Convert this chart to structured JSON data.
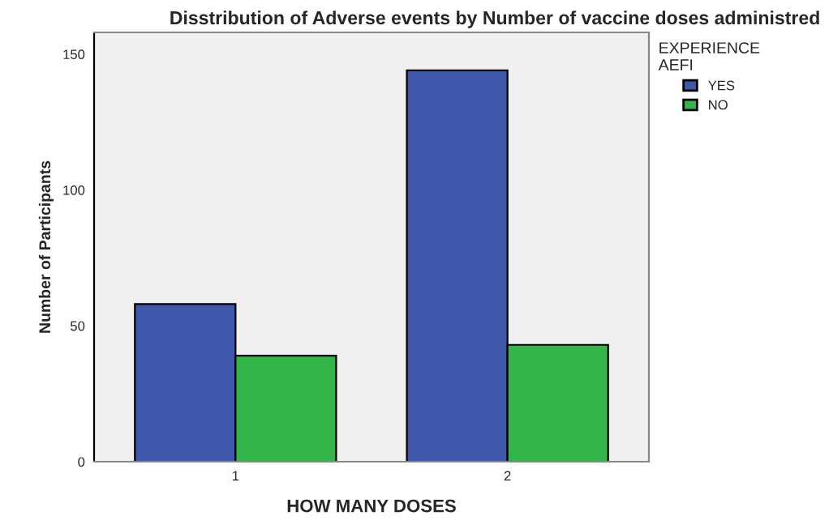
{
  "chart_data": {
    "type": "bar",
    "title": "Disstribution of Adverse events by Number of vaccine doses administred",
    "xlabel": "HOW MANY DOSES",
    "ylabel": "Number of Participants",
    "legend_title": "EXPERIENCE\nAEFI",
    "categories": [
      "1",
      "2"
    ],
    "series": [
      {
        "name": "YES",
        "color": "#3f58ab",
        "values": [
          58,
          144
        ]
      },
      {
        "name": "NO",
        "color": "#33b54a",
        "values": [
          39,
          43
        ]
      }
    ],
    "ylim": [
      0,
      158
    ],
    "yticks": [
      0,
      50,
      100,
      150
    ],
    "grid": false,
    "legend": "right"
  }
}
